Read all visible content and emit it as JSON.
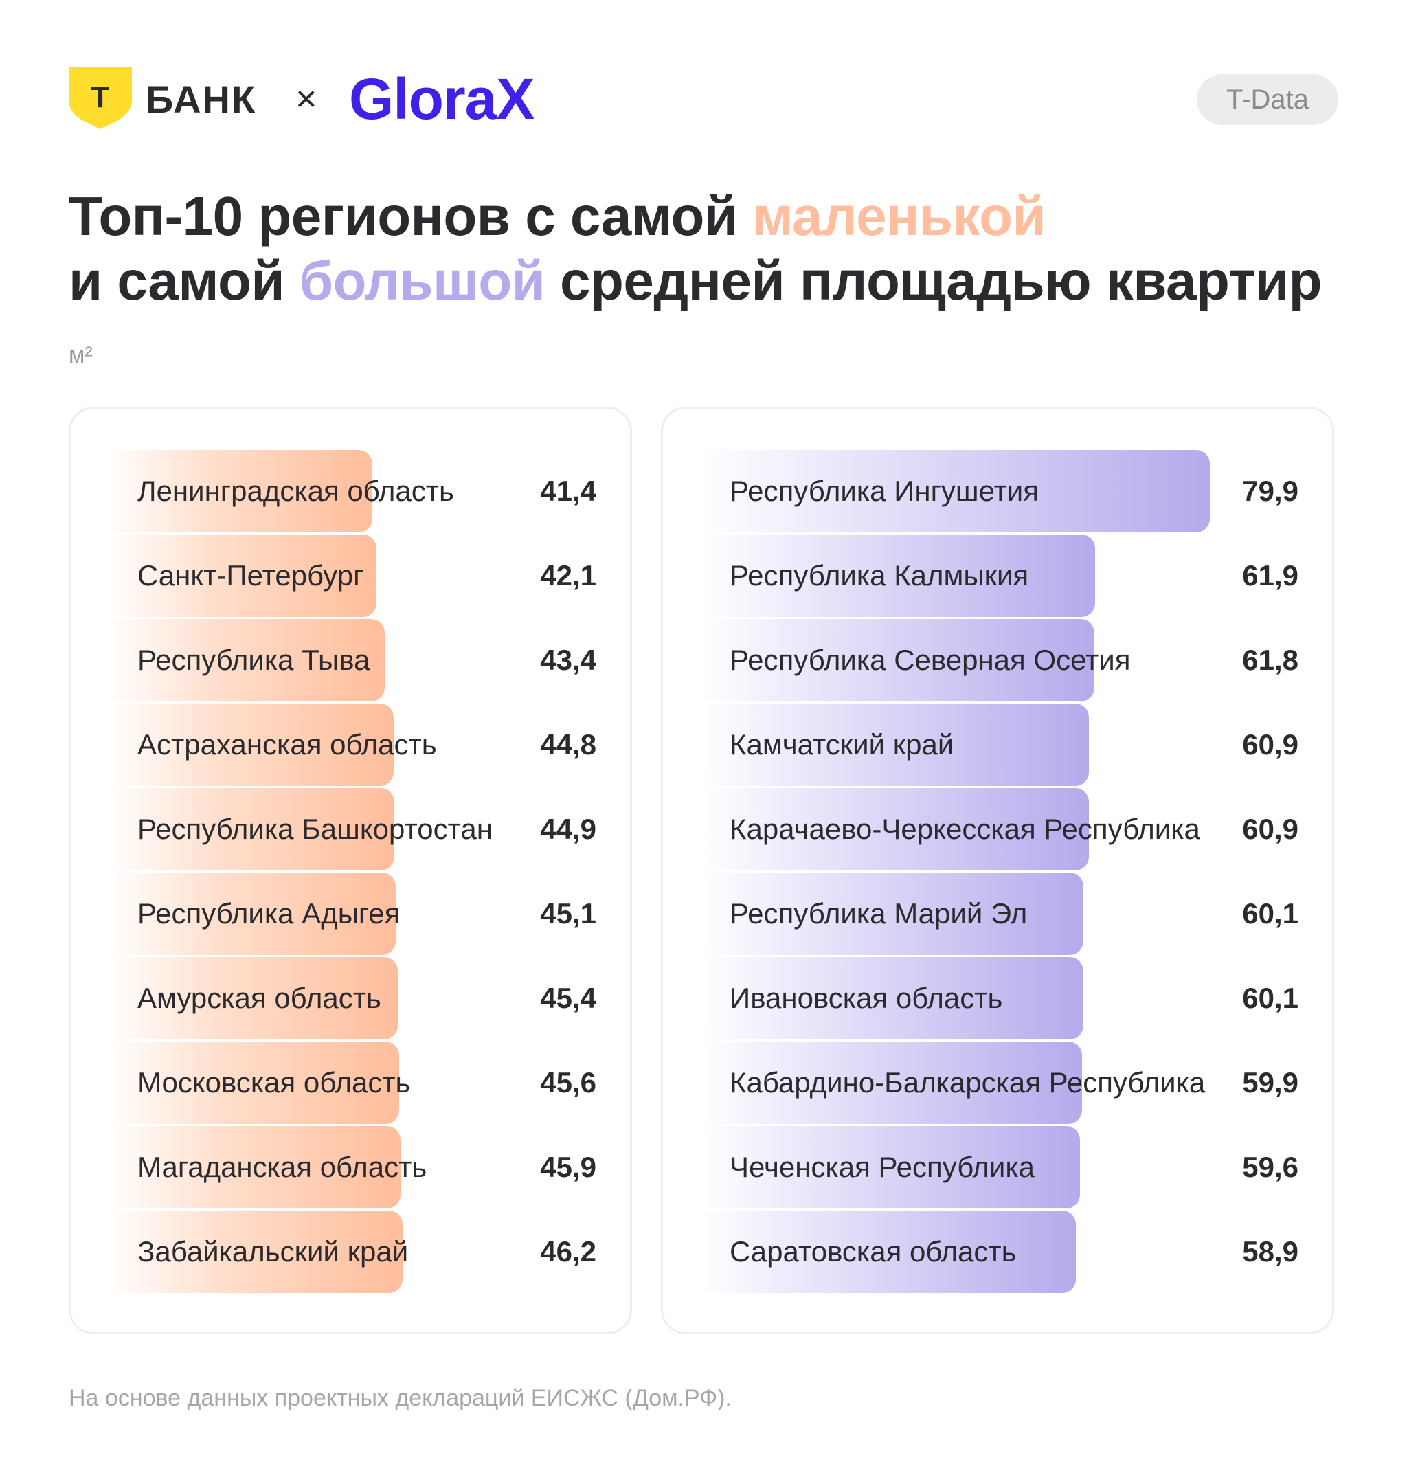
{
  "header": {
    "tbank_logo_letter": "Т",
    "tbank_logo_word": "БАНК",
    "separator": "×",
    "partner_logo": "GloraX",
    "badge": "T-Data"
  },
  "title": {
    "part1": "Топ-10 регионов с самой ",
    "highlight_small": "маленькой",
    "part2": "и самой ",
    "highlight_big": "большой",
    "part3": " средней площадью квартир"
  },
  "unit": "м²",
  "colors": {
    "small_accent": "#ffbd9b",
    "big_accent": "#b3abec",
    "logo_yellow": "#ffdd2d",
    "glorax_blue": "#3f22e8"
  },
  "chart_data": [
    {
      "type": "bar",
      "orientation": "horizontal",
      "unit": "м²",
      "categories": [
        "Ленинградская область",
        "Санкт-Петербург",
        "Республика Тыва",
        "Астраханская область",
        "Республика Башкортостан",
        "Республика Адыгея",
        "Амурская область",
        "Московская область",
        "Магаданская область",
        "Забайкальский край"
      ],
      "labels": [
        "41,4",
        "42,1",
        "43,4",
        "44,8",
        "44,9",
        "45,1",
        "45,4",
        "45,6",
        "45,9",
        "46,2"
      ],
      "values": [
        41.4,
        42.1,
        43.4,
        44.8,
        44.9,
        45.1,
        45.4,
        45.6,
        45.9,
        46.2
      ]
    },
    {
      "type": "bar",
      "orientation": "horizontal",
      "unit": "м²",
      "categories": [
        "Республика Ингушетия",
        "Республика Калмыкия",
        "Республика Северная Осетия",
        "Камчатский край",
        "Карачаево-Черкесская Республика",
        "Республика Марий Эл",
        "Ивановская область",
        "Кабардино-Балкарская Республика",
        "Чеченская Республика",
        "Саратовская область"
      ],
      "labels": [
        "79,9",
        "61,9",
        "61,8",
        "60,9",
        "60,9",
        "60,1",
        "60,1",
        "59,9",
        "59,6",
        "58,9"
      ],
      "values": [
        79.9,
        61.9,
        61.8,
        60.9,
        60.9,
        60.1,
        60.1,
        59.9,
        59.6,
        58.9
      ]
    }
  ],
  "footnote": "На основе данных проектных деклараций ЕИСЖС (Дом.РФ)."
}
